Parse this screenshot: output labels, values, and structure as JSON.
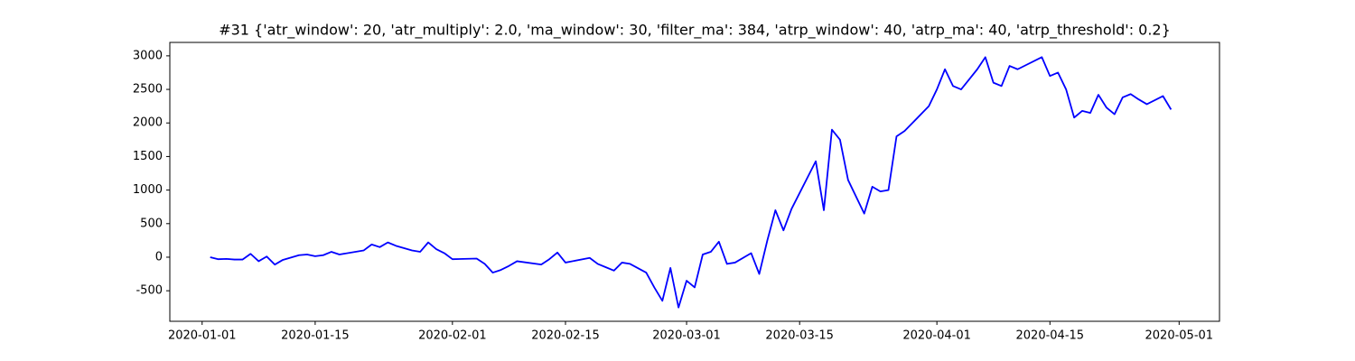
{
  "chart_data": {
    "type": "line",
    "title": "#31 {'atr_window': 20, 'atr_multiply': 2.0, 'ma_window': 30, 'filter_ma': 384, 'atrp_window': 40, 'atrp_ma': 40, 'atrp_threshold': 0.2}",
    "x": [
      "2020-01-02",
      "2020-01-03",
      "2020-01-04",
      "2020-01-05",
      "2020-01-06",
      "2020-01-07",
      "2020-01-08",
      "2020-01-09",
      "2020-01-10",
      "2020-01-11",
      "2020-01-13",
      "2020-01-14",
      "2020-01-15",
      "2020-01-16",
      "2020-01-17",
      "2020-01-18",
      "2020-01-21",
      "2020-01-22",
      "2020-01-23",
      "2020-01-24",
      "2020-01-25",
      "2020-01-27",
      "2020-01-28",
      "2020-01-29",
      "2020-01-30",
      "2020-01-31",
      "2020-02-01",
      "2020-02-04",
      "2020-02-05",
      "2020-02-06",
      "2020-02-07",
      "2020-02-08",
      "2020-02-09",
      "2020-02-12",
      "2020-02-13",
      "2020-02-14",
      "2020-02-15",
      "2020-02-18",
      "2020-02-19",
      "2020-02-20",
      "2020-02-21",
      "2020-02-22",
      "2020-02-23",
      "2020-02-25",
      "2020-02-26",
      "2020-02-27",
      "2020-02-28",
      "2020-02-29",
      "2020-03-01",
      "2020-03-02",
      "2020-03-03",
      "2020-03-04",
      "2020-03-05",
      "2020-03-06",
      "2020-03-07",
      "2020-03-09",
      "2020-03-10",
      "2020-03-11",
      "2020-03-12",
      "2020-03-13",
      "2020-03-14",
      "2020-03-17",
      "2020-03-18",
      "2020-03-19",
      "2020-03-20",
      "2020-03-21",
      "2020-03-23",
      "2020-03-24",
      "2020-03-25",
      "2020-03-26",
      "2020-03-27",
      "2020-03-28",
      "2020-03-31",
      "2020-04-01",
      "2020-04-02",
      "2020-04-03",
      "2020-04-04",
      "2020-04-05",
      "2020-04-06",
      "2020-04-07",
      "2020-04-08",
      "2020-04-09",
      "2020-04-10",
      "2020-04-11",
      "2020-04-14",
      "2020-04-15",
      "2020-04-16",
      "2020-04-17",
      "2020-04-18",
      "2020-04-19",
      "2020-04-20",
      "2020-04-21",
      "2020-04-22",
      "2020-04-23",
      "2020-04-24",
      "2020-04-25",
      "2020-04-26",
      "2020-04-27",
      "2020-04-29",
      "2020-04-30"
    ],
    "series": [
      {
        "color": "#0000ff",
        "values": [
          0,
          -30,
          -25,
          -35,
          -35,
          50,
          -60,
          10,
          -110,
          -40,
          30,
          40,
          15,
          30,
          80,
          40,
          100,
          190,
          150,
          220,
          170,
          100,
          80,
          220,
          120,
          60,
          -30,
          -20,
          -100,
          -230,
          -190,
          -130,
          -60,
          -110,
          -30,
          70,
          -80,
          -10,
          -100,
          -150,
          -200,
          -80,
          -100,
          -230,
          -450,
          -650,
          -160,
          -750,
          -350,
          -450,
          40,
          80,
          230,
          -100,
          -80,
          60,
          -250,
          250,
          700,
          400,
          720,
          1430,
          700,
          1900,
          1750,
          1150,
          650,
          1050,
          980,
          1000,
          1800,
          1880,
          2250,
          2500,
          2800,
          2550,
          2500,
          2650,
          2800,
          2980,
          2600,
          2550,
          2850,
          2800,
          2980,
          2700,
          2750,
          2500,
          2080,
          2180,
          2150,
          2420,
          2230,
          2130,
          2380,
          2430,
          2350,
          2280,
          2400,
          2200
        ]
      }
    ],
    "xlim": [
      "2019-12-28",
      "2020-05-06"
    ],
    "xticks": [
      "2020-01-01",
      "2020-01-15",
      "2020-02-01",
      "2020-02-15",
      "2020-03-01",
      "2020-03-15",
      "2020-04-01",
      "2020-04-15",
      "2020-05-01"
    ],
    "ylim": [
      -955,
      3200
    ],
    "yticks": [
      -500,
      0,
      500,
      1000,
      1500,
      2000,
      2500,
      3000
    ]
  }
}
